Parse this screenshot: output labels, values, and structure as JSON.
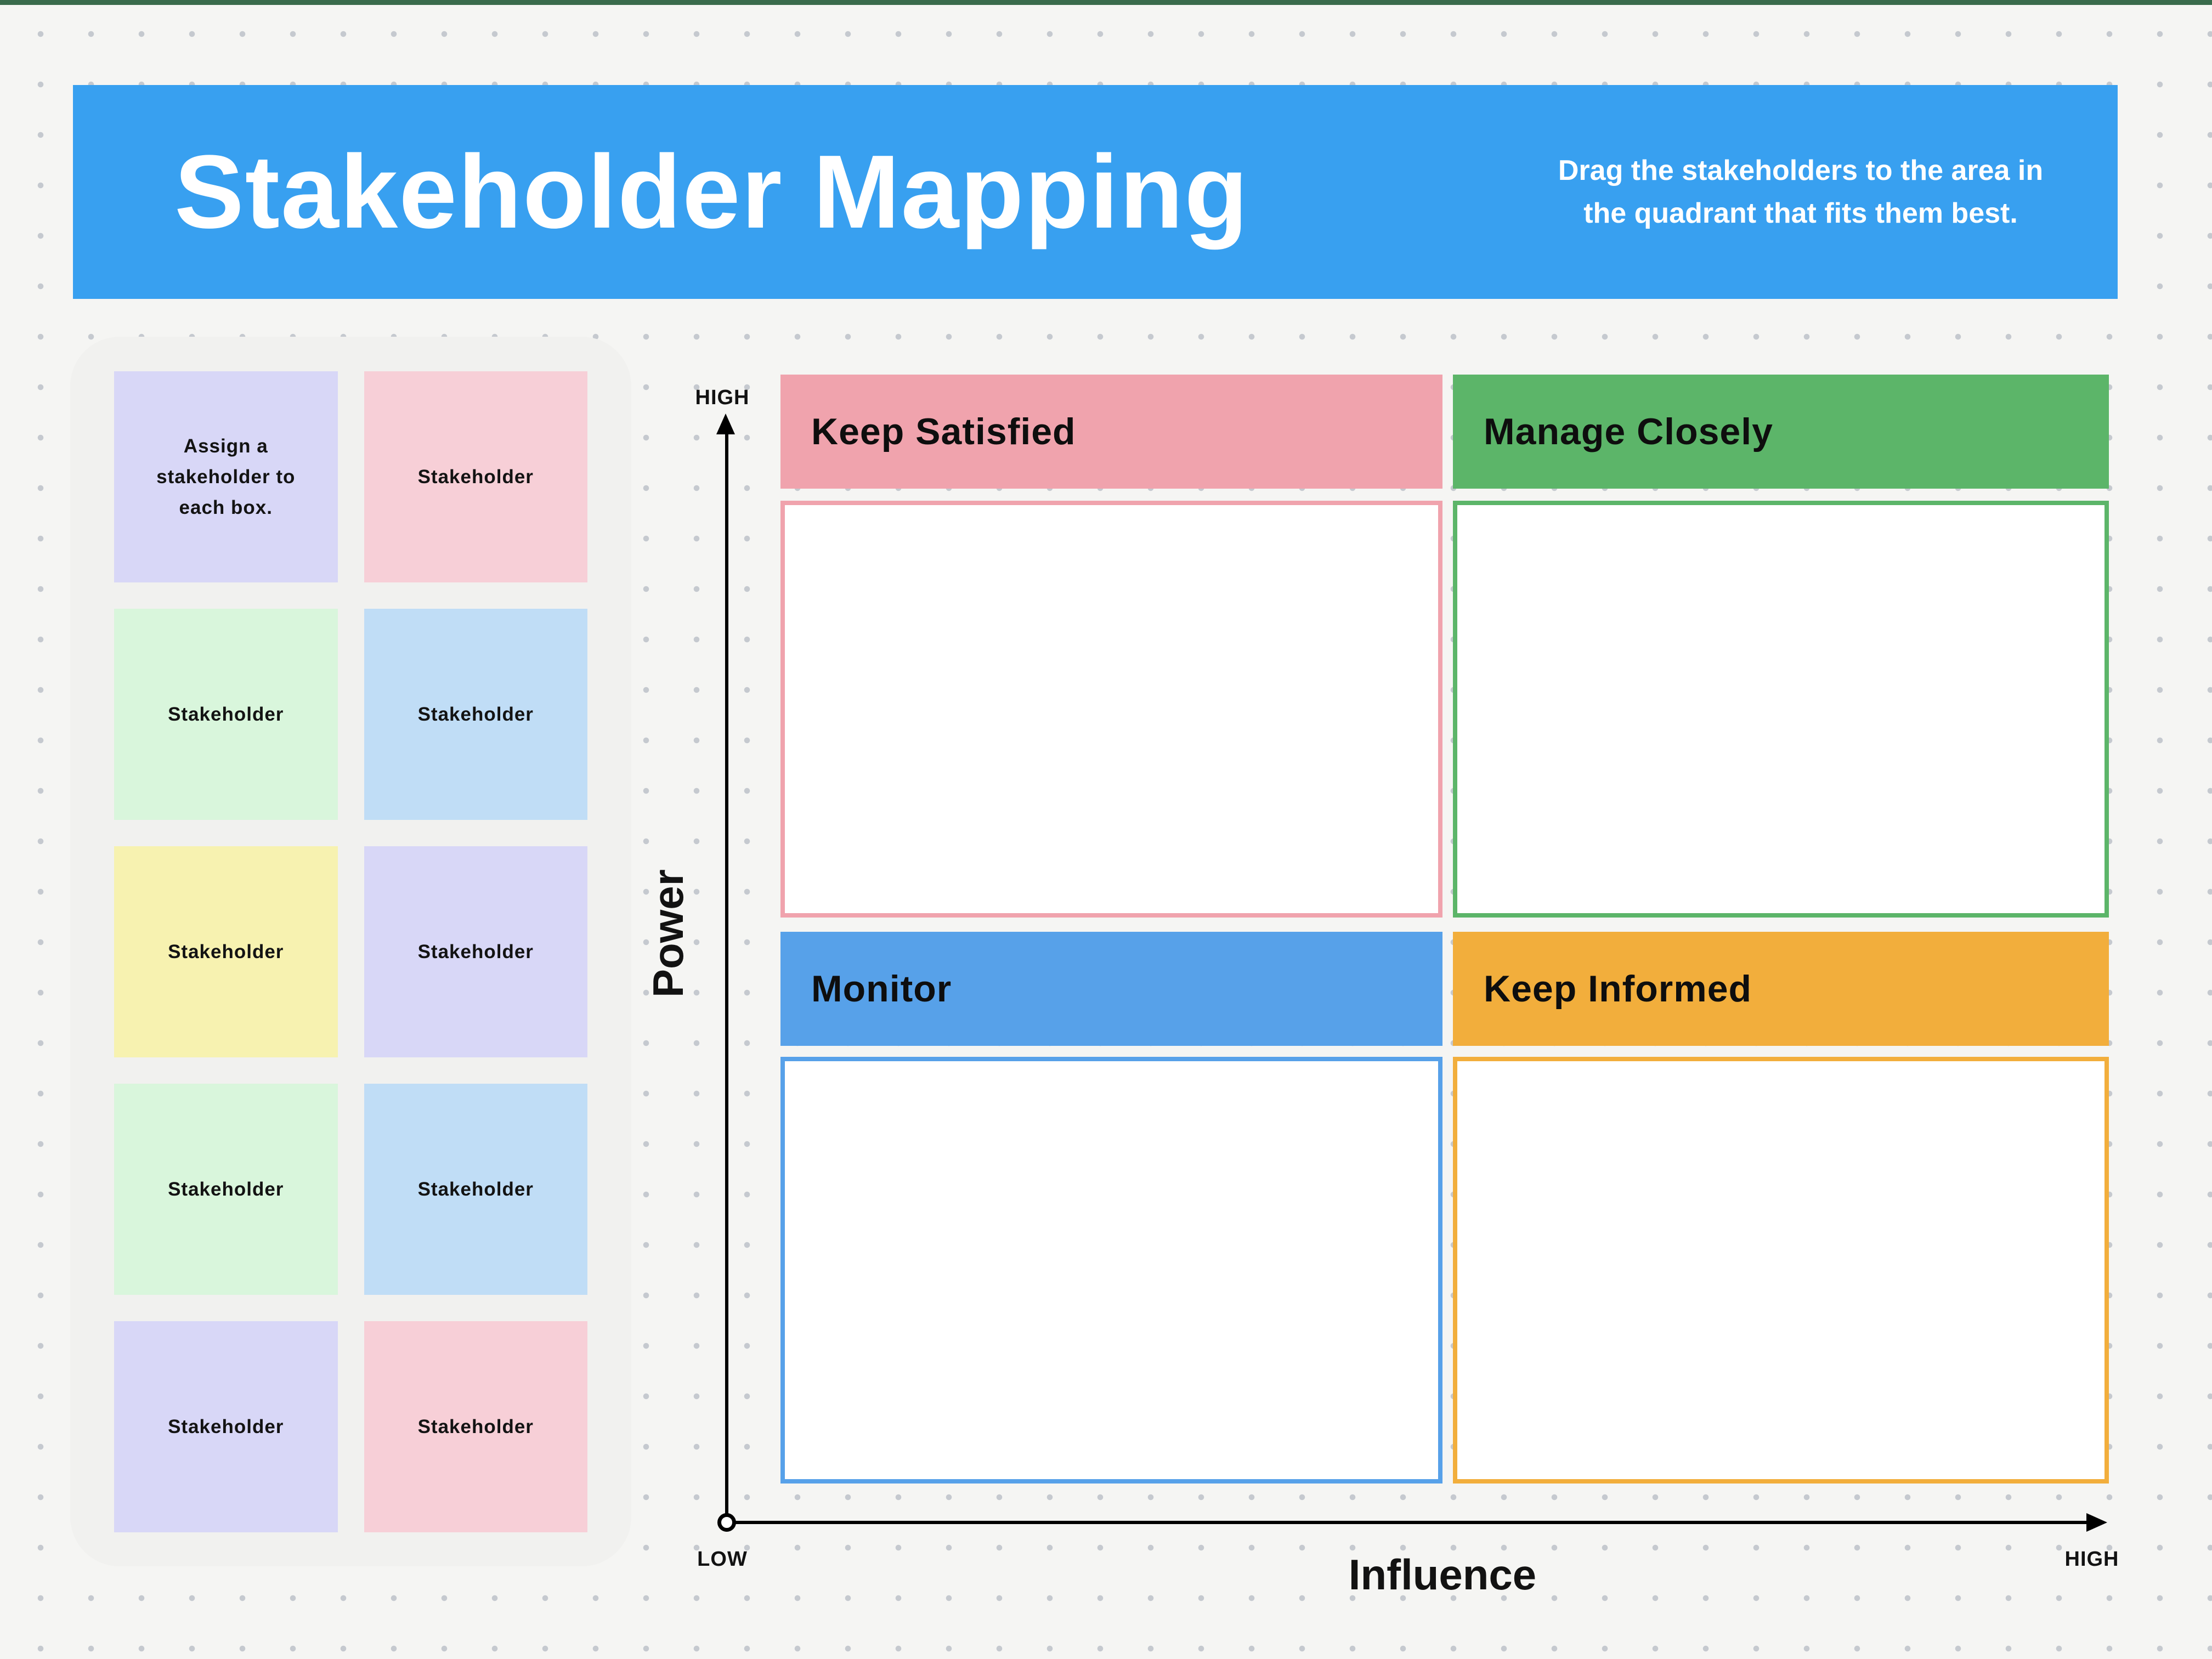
{
  "window": {
    "top_strip_color": "#3a6b4c"
  },
  "canvas": {
    "background": "#f5f5f3",
    "dot_color": "#c5c9cf"
  },
  "banner": {
    "color": "#38a0f0",
    "text_color": "#ffffff",
    "title": "Stakeholder Mapping",
    "subtitle_line1": "Drag the stakeholders to the area in",
    "subtitle_line2": "the quadrant that fits them best."
  },
  "sidebar": {
    "background": "#f1f1ef",
    "notes": [
      {
        "label": "Assign a stakeholder to each box.",
        "color": "#d8d7f7"
      },
      {
        "label": "Stakeholder",
        "color": "#f7cfd7"
      },
      {
        "label": "Stakeholder",
        "color": "#d9f6dc"
      },
      {
        "label": "Stakeholder",
        "color": "#c0ddf6"
      },
      {
        "label": "Stakeholder",
        "color": "#f7f2b0"
      },
      {
        "label": "Stakeholder",
        "color": "#d8d7f7"
      },
      {
        "label": "Stakeholder",
        "color": "#d9f6dc"
      },
      {
        "label": "Stakeholder",
        "color": "#c0ddf6"
      },
      {
        "label": "Stakeholder",
        "color": "#d8d7f7"
      },
      {
        "label": "Stakeholder",
        "color": "#f7cfd7"
      }
    ]
  },
  "matrix": {
    "quadrants": [
      {
        "id": "keep-satisfied",
        "label": "Keep Satisfied",
        "color": "#f0a3ad"
      },
      {
        "id": "manage-closely",
        "label": "Manage Closely",
        "color": "#5cb569"
      },
      {
        "id": "monitor",
        "label": "Monitor",
        "color": "#57a1e9"
      },
      {
        "id": "keep-informed",
        "label": "Keep Informed",
        "color": "#f2ae3c"
      }
    ]
  },
  "axes": {
    "y_label": "Power",
    "x_label": "Influence",
    "y_max": "HIGH",
    "origin": "LOW",
    "x_max": "HIGH"
  }
}
